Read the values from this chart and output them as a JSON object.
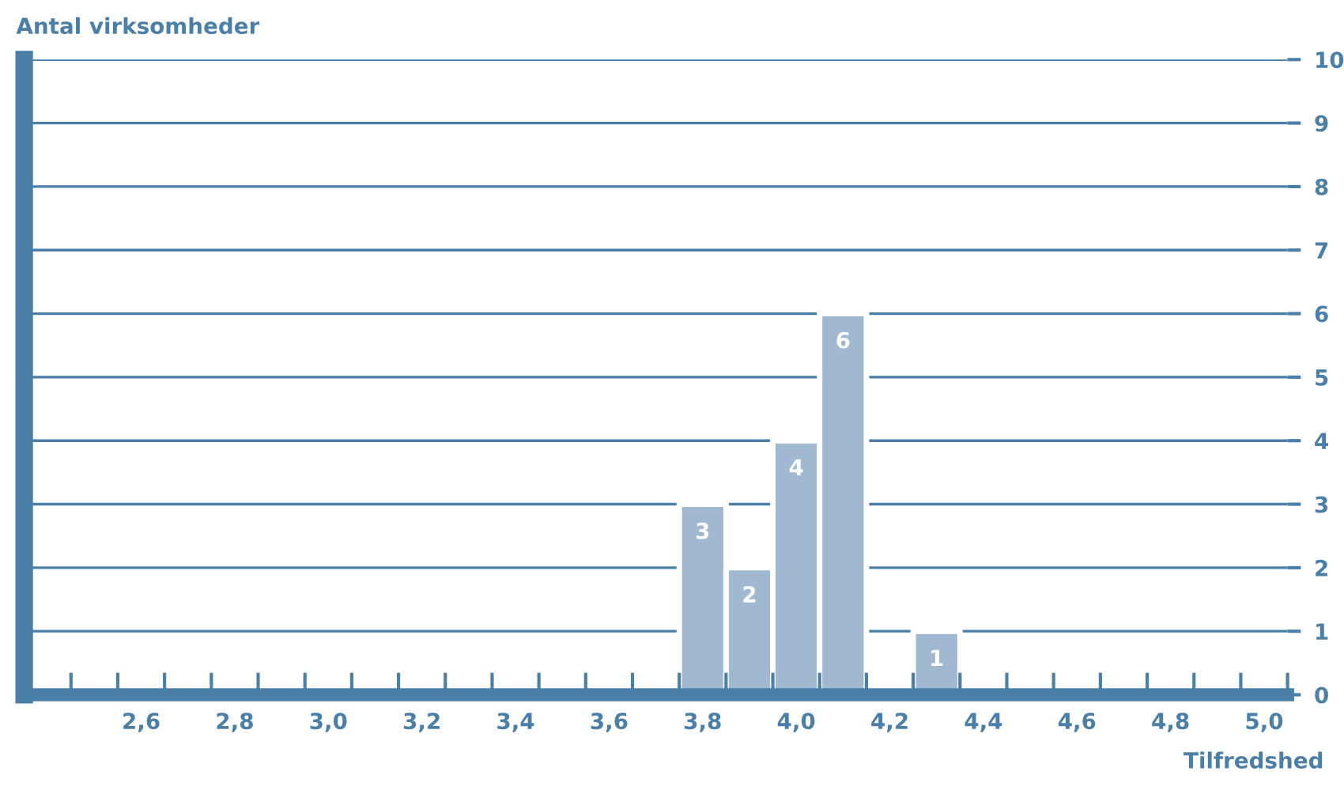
{
  "chart_data": {
    "type": "histogram",
    "ylabel": "Antal virksomheder",
    "xlabel": "Tilfredshed",
    "bins": [
      3.75,
      3.85,
      3.95,
      4.05,
      4.15,
      4.25,
      4.35
    ],
    "values": [
      3,
      2,
      4,
      6,
      0,
      1
    ],
    "value_labels": [
      "3",
      "2",
      "4",
      "6",
      null,
      "1"
    ],
    "color": "#a0b9d0",
    "xlim": [
      2.35,
      5.05
    ],
    "xticks": [
      {
        "value": 2.6,
        "label": "2,6"
      },
      {
        "value": 2.8,
        "label": "2,8"
      },
      {
        "value": 3.0,
        "label": "3,0"
      },
      {
        "value": 3.2,
        "label": "3,2"
      },
      {
        "value": 3.4,
        "label": "3,4"
      },
      {
        "value": 3.6,
        "label": "3,6"
      },
      {
        "value": 3.8,
        "label": "3,8"
      },
      {
        "value": 4.0,
        "label": "4,0"
      },
      {
        "value": 4.2,
        "label": "4,2"
      },
      {
        "value": 4.4,
        "label": "4,4"
      },
      {
        "value": 4.6,
        "label": "4,6"
      },
      {
        "value": 4.8,
        "label": "4,8"
      },
      {
        "value": 5.0,
        "label": "5,0"
      },
      {
        "value": 2.45,
        "label": null
      },
      {
        "value": 2.55,
        "label": null
      },
      {
        "value": 2.65,
        "label": null
      },
      {
        "value": 2.75,
        "label": null
      },
      {
        "value": 2.85,
        "label": null
      },
      {
        "value": 2.95,
        "label": null
      },
      {
        "value": 3.05,
        "label": null
      },
      {
        "value": 3.15,
        "label": null
      },
      {
        "value": 3.25,
        "label": null
      },
      {
        "value": 3.35,
        "label": null
      },
      {
        "value": 3.45,
        "label": null
      },
      {
        "value": 3.55,
        "label": null
      },
      {
        "value": 3.65,
        "label": null
      },
      {
        "value": 3.75,
        "label": null
      },
      {
        "value": 3.85,
        "label": null
      },
      {
        "value": 3.95,
        "label": null
      },
      {
        "value": 4.05,
        "label": null
      },
      {
        "value": 4.15,
        "label": null
      },
      {
        "value": 4.25,
        "label": null
      },
      {
        "value": 4.35,
        "label": null
      },
      {
        "value": 4.45,
        "label": null
      },
      {
        "value": 4.55,
        "label": null
      },
      {
        "value": 4.65,
        "label": null
      },
      {
        "value": 4.75,
        "label": null
      },
      {
        "value": 4.85,
        "label": null
      },
      {
        "value": 4.95,
        "label": null
      },
      {
        "value": 5.05,
        "label": null
      }
    ],
    "ylim": [
      0,
      10
    ],
    "yticks": [
      0,
      1,
      2,
      3,
      4,
      5,
      6,
      7,
      8,
      9,
      10
    ],
    "grid": "y"
  }
}
